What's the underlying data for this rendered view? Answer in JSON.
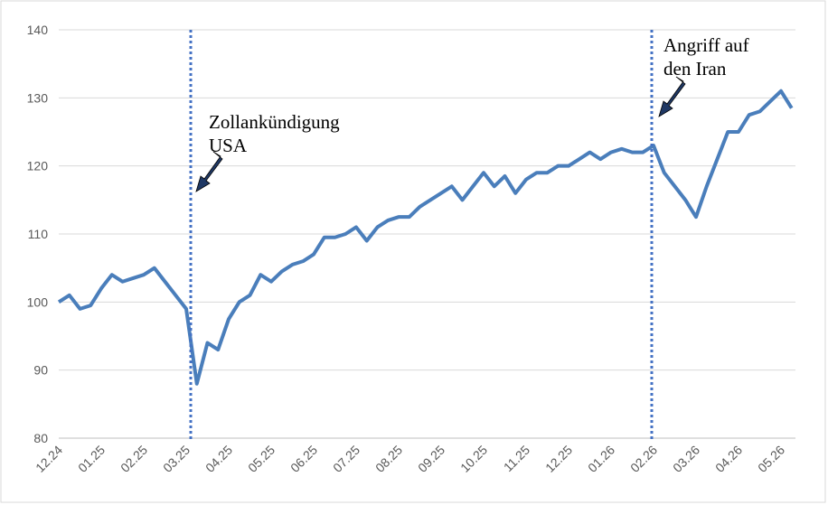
{
  "chart_data": {
    "type": "line",
    "categories": [
      "12.24",
      null,
      null,
      null,
      "01.25",
      null,
      null,
      null,
      "02.25",
      null,
      null,
      null,
      "03.25",
      null,
      null,
      null,
      "04.25",
      null,
      null,
      null,
      "05.25",
      null,
      null,
      null,
      "06.25",
      null,
      null,
      null,
      "07.25",
      null,
      null,
      null,
      "08.25",
      null,
      null,
      null,
      "09.25",
      null,
      null,
      null,
      "10.25",
      null,
      null,
      null,
      "11.25",
      null,
      null,
      null,
      "12.25",
      null,
      null,
      null,
      "01.26",
      null,
      null,
      null,
      "02.26",
      null,
      null,
      null,
      "03.26",
      null,
      null,
      null,
      "04.26",
      null,
      null,
      null,
      "05.26",
      null
    ],
    "series": [
      {
        "color": "#4a7ebb",
        "values": [
          100,
          101,
          99,
          99.5,
          102,
          104,
          103,
          103.5,
          104,
          105,
          103,
          101,
          99,
          88,
          94,
          93,
          97.5,
          100,
          101,
          104,
          103,
          104.5,
          105.5,
          106,
          107,
          109.5,
          109.5,
          110,
          111,
          109,
          111,
          112,
          112.5,
          112.5,
          114,
          115,
          116,
          117,
          115,
          117,
          119,
          117,
          118.5,
          116,
          118,
          119,
          119,
          120,
          120,
          121,
          122,
          121,
          122,
          122.5,
          122,
          122,
          123,
          119,
          117,
          115,
          112.5,
          117,
          121,
          125,
          125,
          127.5,
          128,
          129.5,
          131,
          128.5
        ]
      }
    ],
    "ylim": [
      80,
      140
    ],
    "yticks": [
      80,
      90,
      100,
      110,
      120,
      130,
      140
    ],
    "grid": true,
    "annotations": [
      [
        "Zollankündigung",
        "USA"
      ],
      [
        "Angriff auf",
        "den Iran"
      ]
    ]
  }
}
